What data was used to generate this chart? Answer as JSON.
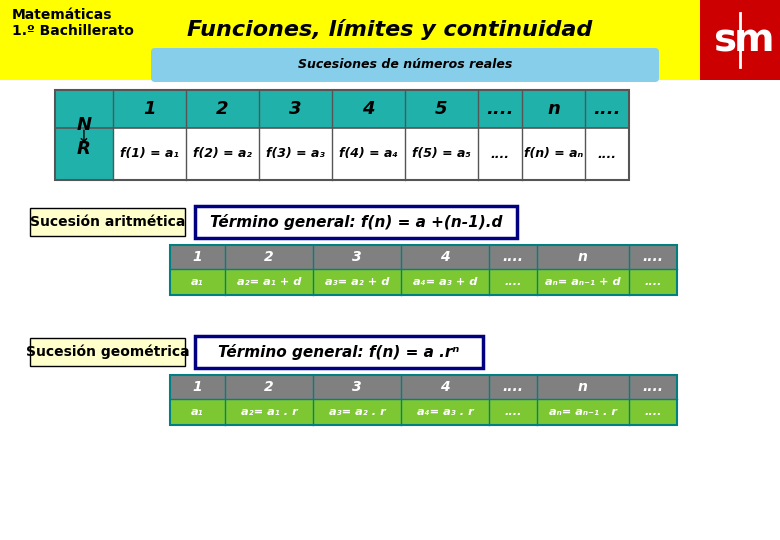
{
  "title": "Funciones, límites y continuidad",
  "subtitle": "Sucesiones de números reales",
  "header_left_line1": "Matemáticas",
  "header_left_line2": "1.º Bachillerato",
  "bg_yellow": "#FFFF00",
  "bg_red": "#CC0000",
  "bg_light_blue": "#87CEEB",
  "bg_white": "#FFFFFF",
  "bg_teal_cell": "#20B2AA",
  "bg_green_cell": "#7DC832",
  "bg_gray_cell": "#808080",
  "bg_light_yellow": "#FFFFCC",
  "border_blue": "#000080",
  "arith_label": "Sucesión aritmética",
  "arith_formula": "Término general: f(n) = a +(n-1).d",
  "geo_label": "Sucesión geométrica",
  "geo_formula": "Término general: f(n) = a .rⁿ"
}
